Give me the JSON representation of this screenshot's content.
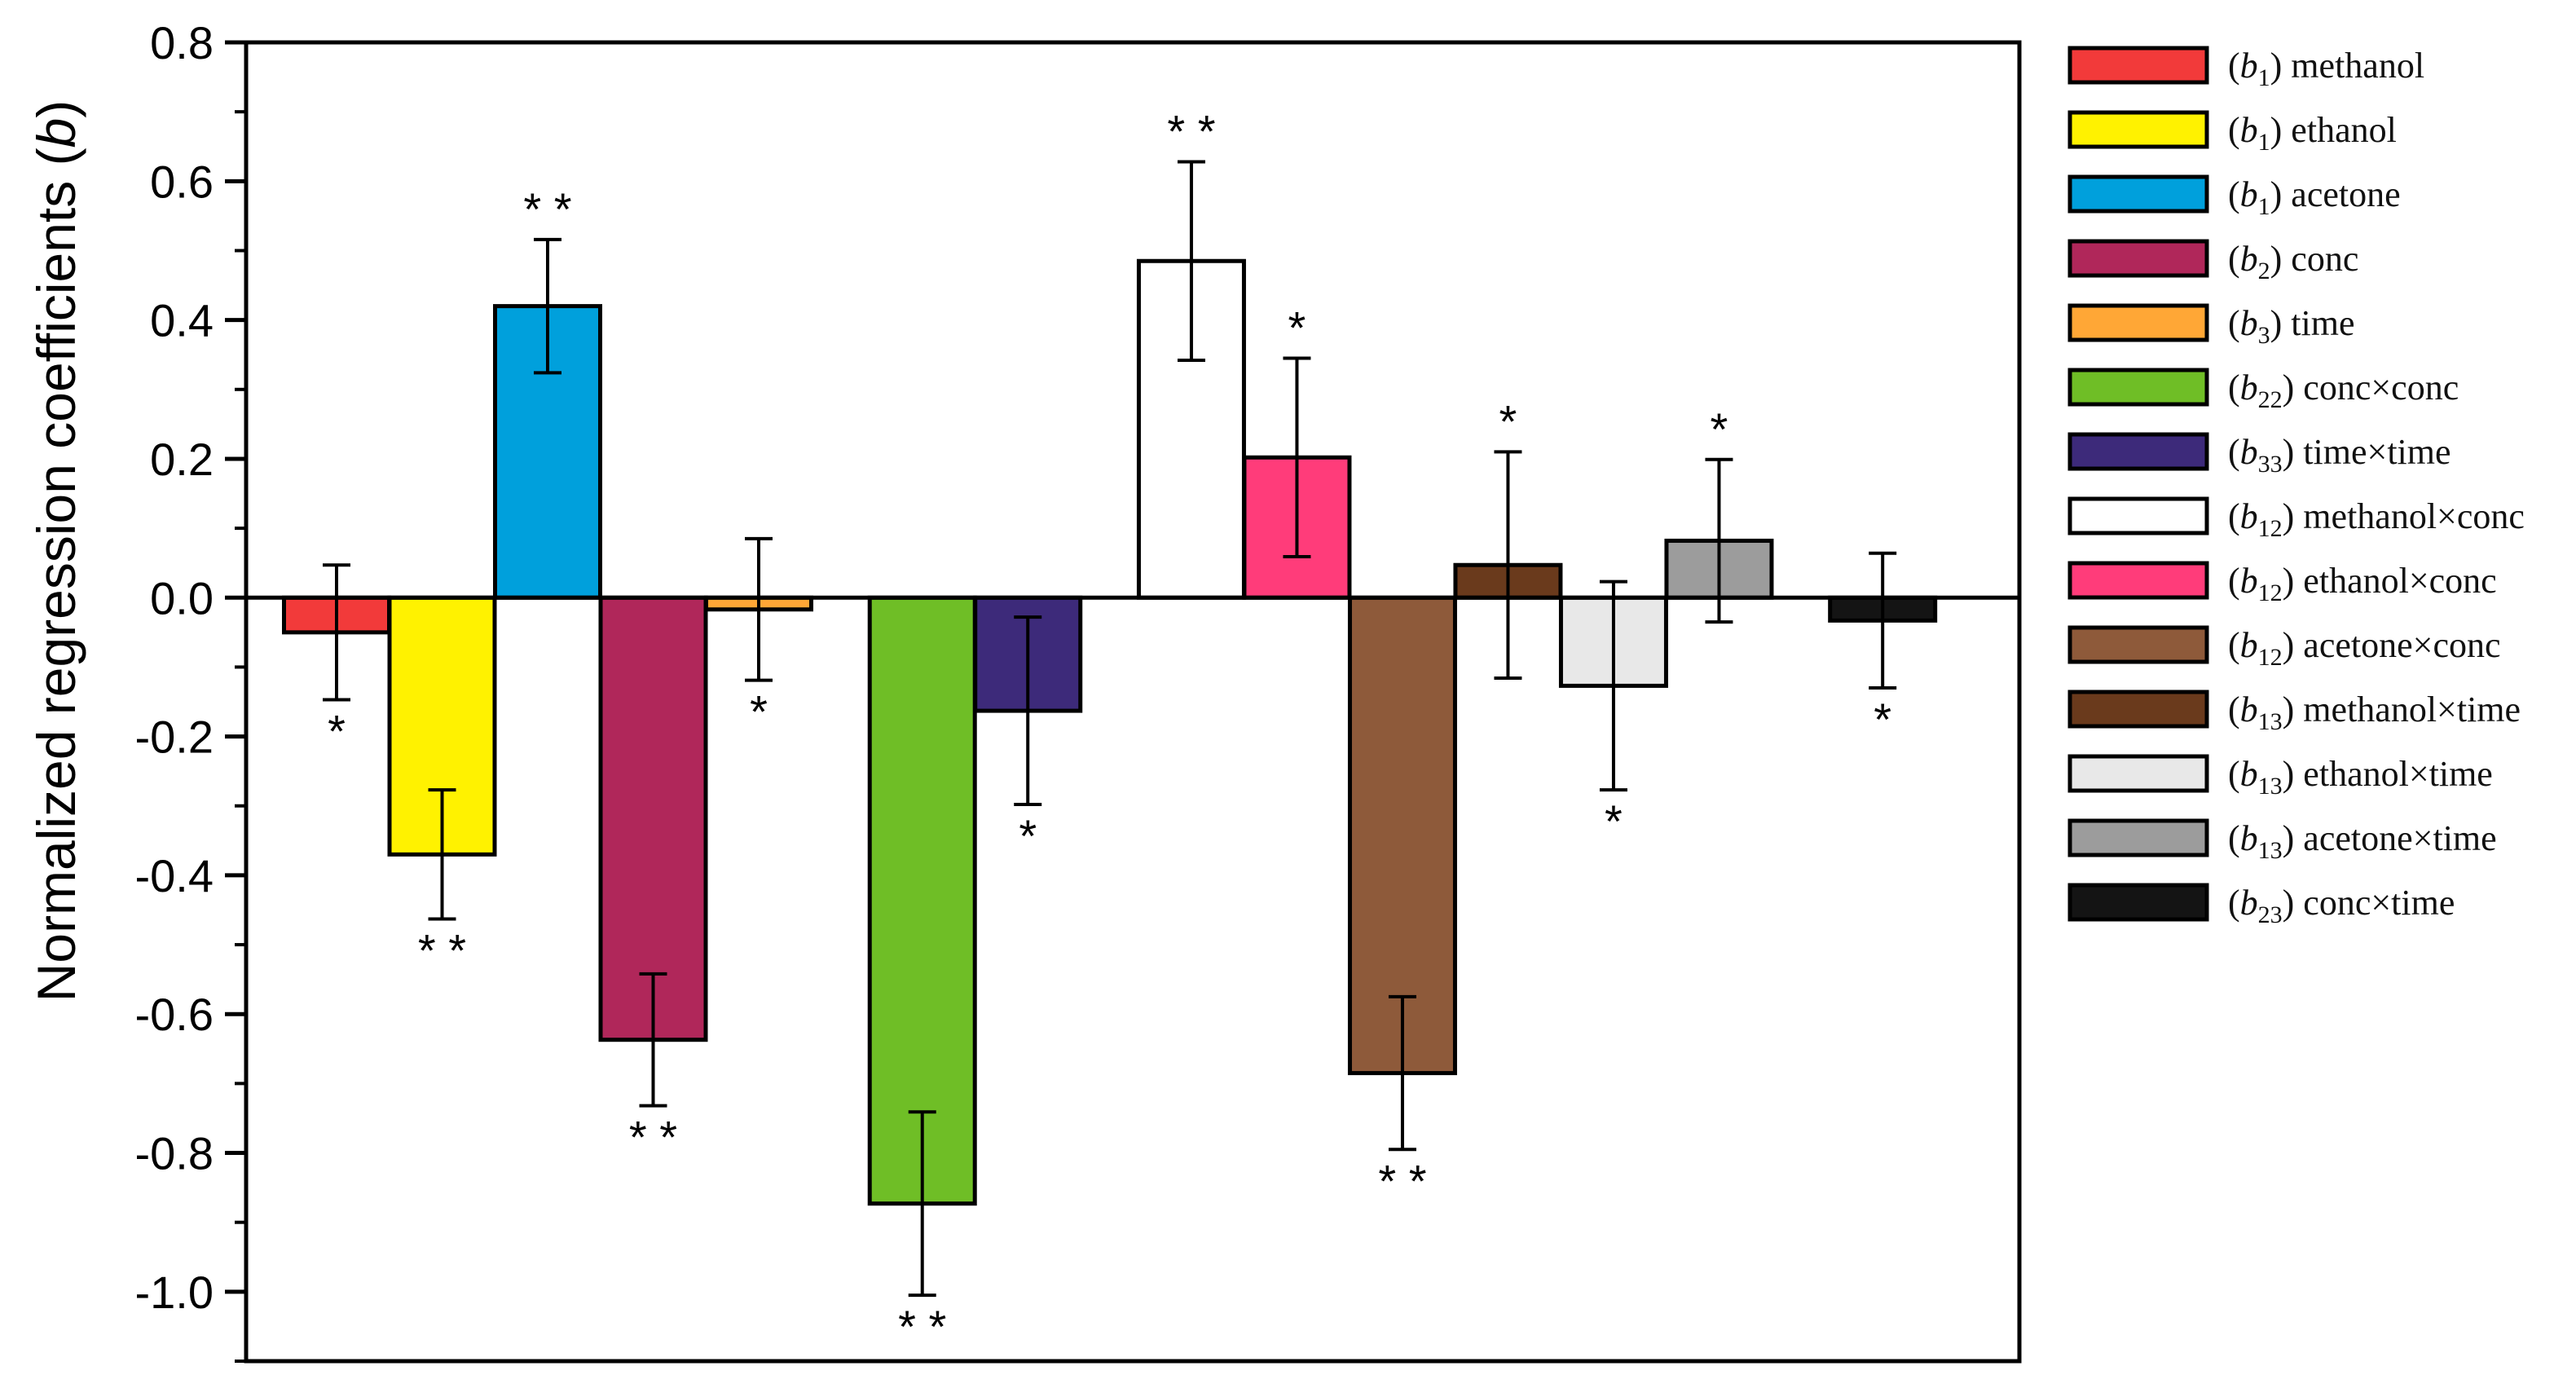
{
  "chart_data": {
    "type": "bar",
    "ylabel": "Normalized regression coefficients (b)",
    "ylabel_parts": [
      "Normalized regression coefficients (",
      "b",
      ")"
    ],
    "xlabel": "",
    "ylim": [
      -1.1,
      0.8
    ],
    "yticks": [
      0.8,
      0.6,
      0.4,
      0.2,
      0.0,
      -0.2,
      -0.4,
      -0.6,
      -0.8,
      -1.0
    ],
    "ytick_labels": [
      "0.8",
      "0.6",
      "0.4",
      "0.2",
      "0.0",
      "-0.2",
      "-0.4",
      "-0.6",
      "-0.8",
      "-1.0"
    ],
    "legend_position": "right",
    "zero_line": true,
    "series": [
      {
        "name": "(b1) methanol",
        "sym": "b",
        "sub": "1",
        "label": "methanol",
        "value": -0.05,
        "error": 0.097,
        "sig": "*",
        "color": "#f23a3a",
        "slot": 1
      },
      {
        "name": "(b1) ethanol",
        "sym": "b",
        "sub": "1",
        "label": "ethanol",
        "value": -0.37,
        "error": 0.093,
        "sig": "**",
        "color": "#fff200",
        "slot": 2
      },
      {
        "name": "(b1) acetone",
        "sym": "b",
        "sub": "1",
        "label": "acetone",
        "value": 0.42,
        "error": 0.096,
        "sig": "**",
        "color": "#00a0dc",
        "slot": 3
      },
      {
        "name": "(b2) conc",
        "sym": "b",
        "sub": "2",
        "label": "conc",
        "value": -0.637,
        "error": 0.095,
        "sig": "**",
        "color": "#b0275a",
        "slot": 4
      },
      {
        "name": "(b3) time",
        "sym": "b",
        "sub": "3",
        "label": "time",
        "value": -0.017,
        "error": 0.102,
        "sig": "*",
        "color": "#ffa736",
        "slot": 5
      },
      {
        "name": "(b22) conc×conc",
        "sym": "b",
        "sub": "22",
        "label": "conc×conc",
        "value": -0.873,
        "error": 0.132,
        "sig": "**",
        "color": "#6fbe26",
        "slot": 6.55
      },
      {
        "name": "(b33) time×time",
        "sym": "b",
        "sub": "33",
        "label": "time×time",
        "value": -0.163,
        "error": 0.135,
        "sig": "*",
        "color": "#3d2a7a",
        "slot": 7.55
      },
      {
        "name": "(b12) methanol×conc",
        "sym": "b",
        "sub": "12",
        "label": "methanol×conc",
        "value": 0.485,
        "error": 0.143,
        "sig": "**",
        "color": "#ffffff",
        "slot": 9.1
      },
      {
        "name": "(b12) ethanol×conc",
        "sym": "b",
        "sub": "12",
        "label": "ethanol×conc",
        "value": 0.202,
        "error": 0.143,
        "sig": "*",
        "color": "#ff3c7a",
        "slot": 10.1
      },
      {
        "name": "(b12) acetone×conc",
        "sym": "b",
        "sub": "12",
        "label": "acetone×conc",
        "value": -0.685,
        "error": 0.11,
        "sig": "**",
        "color": "#8e5a3a",
        "slot": 11.1
      },
      {
        "name": "(b13) methanol×time",
        "sym": "b",
        "sub": "13",
        "label": "methanol×time",
        "value": 0.047,
        "error": 0.163,
        "sig": "*",
        "color": "#6a3a1c",
        "slot": 12.1
      },
      {
        "name": "(b13) ethanol×time",
        "sym": "b",
        "sub": "13",
        "label": "ethanol×time",
        "value": -0.127,
        "error": 0.15,
        "sig": "*",
        "color": "#e8e8e8",
        "slot": 13.1
      },
      {
        "name": "(b13) acetone×time",
        "sym": "b",
        "sub": "13",
        "label": "acetone×time",
        "value": 0.082,
        "error": 0.117,
        "sig": "*",
        "color": "#9c9c9c",
        "slot": 14.1
      },
      {
        "name": "(b23) conc×time",
        "sym": "b",
        "sub": "23",
        "label": "conc×time",
        "value": -0.033,
        "error": 0.097,
        "sig": "*",
        "color": "#141414",
        "slot": 15.65
      }
    ]
  }
}
